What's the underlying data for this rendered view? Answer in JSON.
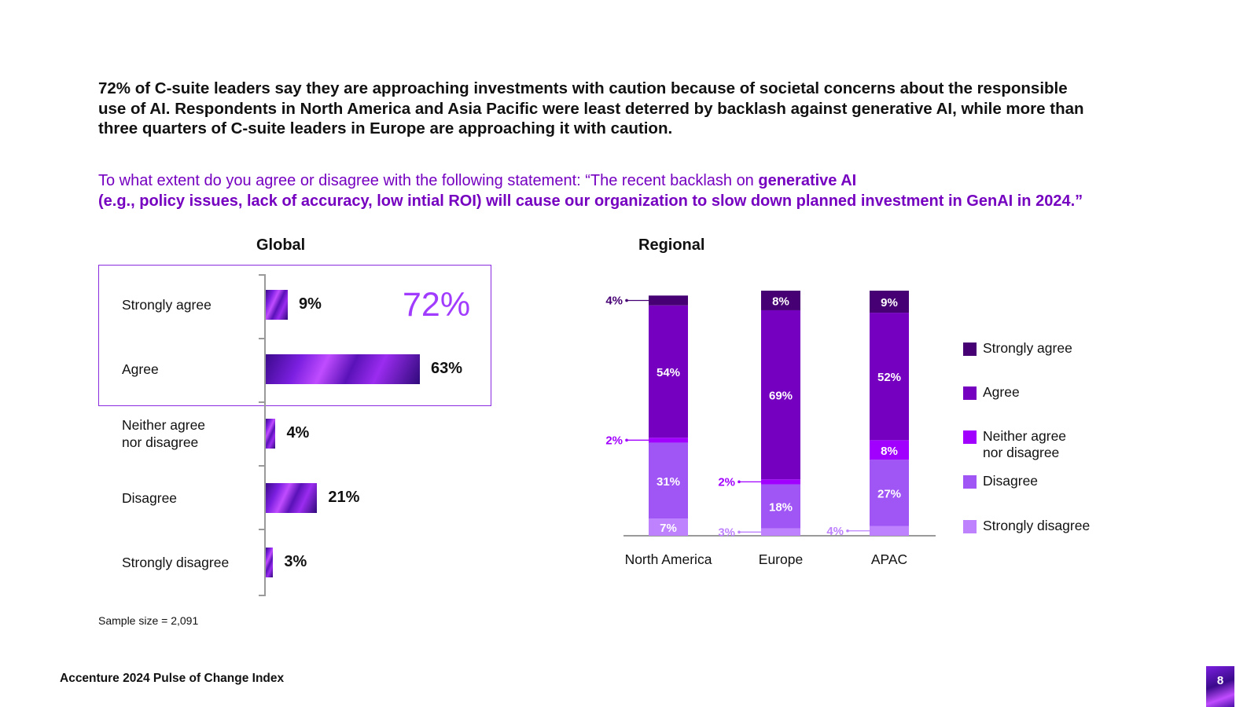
{
  "headline": "72% of C-suite leaders say they are approaching investments with caution because of societal concerns about the responsible use of AI. Respondents in North America and Asia Pacific were least deterred by backlash against generative AI, while more than three quarters of C-suite leaders in Europe are approaching it with caution.",
  "question": {
    "part1": "To what extent do you agree or disagree with the following statement: “The recent backlash on ",
    "bold1": "generative AI",
    "bold2": "(e.g., policy issues, lack of accuracy, low intial ROI) will cause our organization to slow down planned investment in GenAI in 2024.”"
  },
  "global_title": "Global",
  "regional_title": "Regional",
  "highlight_value": "72%",
  "sample_size": "Sample size = 2,091",
  "footer": "Accenture 2024 Pulse of Change Index",
  "page_number": "8",
  "colors": {
    "strongly_agree": "#460073",
    "agree": "#7500c0",
    "neither": "#a100ff",
    "disagree": "#a055f5",
    "strongly_disagree": "#be82ff",
    "accent": "#7500c0"
  },
  "chart_data": [
    {
      "type": "bar",
      "orientation": "horizontal",
      "title": "Global",
      "categories": [
        "Strongly agree",
        "Agree",
        "Neither agree\nnor disagree",
        "Disagree",
        "Strongly disagree"
      ],
      "values": [
        9,
        63,
        4,
        21,
        3
      ],
      "labels": [
        "9%",
        "63%",
        "4%",
        "21%",
        "3%"
      ],
      "xlim": [
        0,
        70
      ]
    },
    {
      "type": "bar",
      "stacked": true,
      "title": "Regional",
      "categories": [
        "North America",
        "Europe",
        "APAC"
      ],
      "series": [
        {
          "name": "Strongly agree",
          "values": [
            4,
            8,
            9
          ],
          "labels": [
            "4%",
            "8%",
            "9%"
          ]
        },
        {
          "name": "Agree",
          "values": [
            54,
            69,
            52
          ],
          "labels": [
            "54%",
            "69%",
            "52%"
          ]
        },
        {
          "name": "Neither agree\nnor disagree",
          "values": [
            2,
            2,
            8
          ],
          "labels": [
            "2%",
            "2%",
            "8%"
          ]
        },
        {
          "name": "Disagree",
          "values": [
            31,
            18,
            27
          ],
          "labels": [
            "31%",
            "18%",
            "27%"
          ]
        },
        {
          "name": "Strongly disagree",
          "values": [
            7,
            3,
            4
          ],
          "labels": [
            "7%",
            "3%",
            "4%"
          ]
        }
      ],
      "ylim": [
        0,
        100
      ],
      "legend": "right"
    }
  ]
}
